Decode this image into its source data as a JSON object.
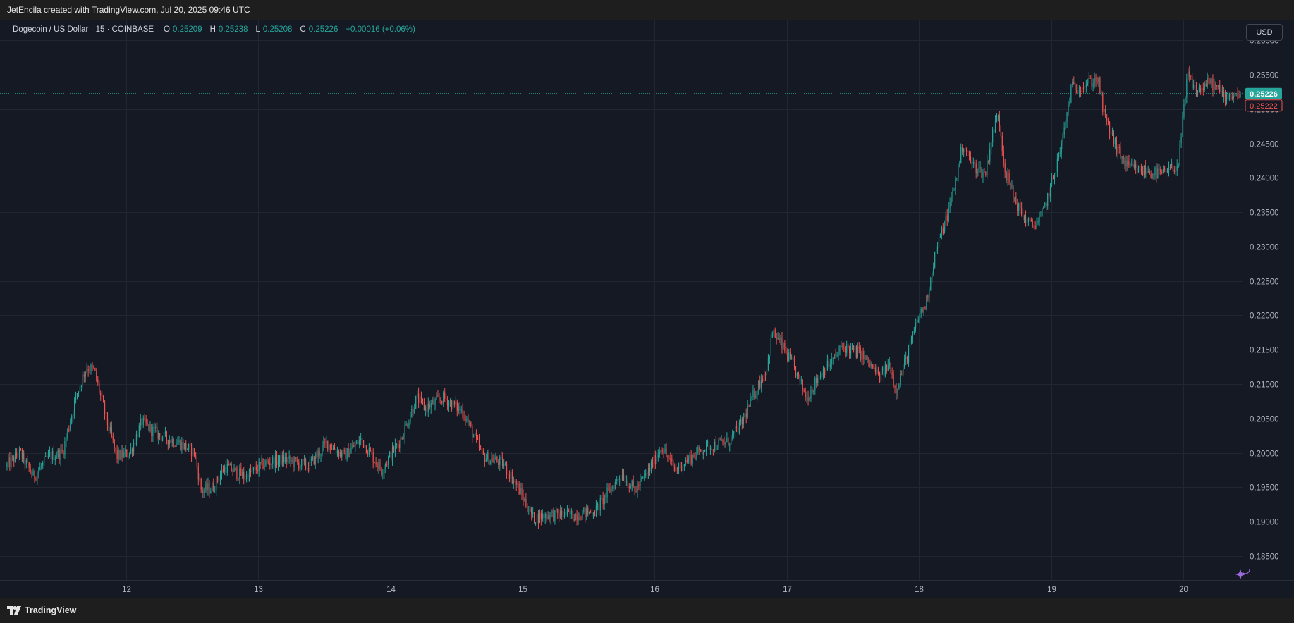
{
  "header": {
    "credit": "JetEncila created with TradingView.com, Jul 20, 2025 09:46 UTC"
  },
  "legend": {
    "symbol": "Dogecoin / US Dollar · 15 · COINBASE",
    "o_label": "O",
    "o_value": "0.25209",
    "h_label": "H",
    "h_value": "0.25238",
    "l_label": "L",
    "l_value": "0.25208",
    "c_label": "C",
    "c_value": "0.25226",
    "change": "+0.00016 (+0.06%)"
  },
  "currency_button": "USD",
  "footer": {
    "brand": "TradingView"
  },
  "colors": {
    "up": "#26a69a",
    "down": "#ef5350",
    "background": "#151924",
    "grid": "#222631",
    "axis_text": "#b2b5be"
  },
  "chart_data": {
    "type": "candlestick",
    "title": "Dogecoin / US Dollar · 15 · COINBASE",
    "x_ticks": [
      "12",
      "13",
      "14",
      "15",
      "16",
      "17",
      "18",
      "19",
      "20"
    ],
    "y_ticks": [
      "0.26000",
      "0.25500",
      "0.25000",
      "0.24500",
      "0.24000",
      "0.23500",
      "0.23000",
      "0.22500",
      "0.22000",
      "0.21500",
      "0.21000",
      "0.20500",
      "0.20000",
      "0.19500",
      "0.19000",
      "0.18500"
    ],
    "ylim": [
      0.1815,
      0.263
    ],
    "x_range_days": [
      11.09,
      20.43
    ],
    "last_price": "0.25226",
    "bid_price": "0.25222",
    "price_path": [
      [
        11.09,
        0.198
      ],
      [
        11.2,
        0.2
      ],
      [
        11.3,
        0.1965
      ],
      [
        11.42,
        0.1995
      ],
      [
        11.52,
        0.2
      ],
      [
        11.62,
        0.208
      ],
      [
        11.7,
        0.2125
      ],
      [
        11.76,
        0.212
      ],
      [
        11.85,
        0.205
      ],
      [
        11.93,
        0.1995
      ],
      [
        12.03,
        0.2
      ],
      [
        12.12,
        0.2045
      ],
      [
        12.25,
        0.2025
      ],
      [
        12.4,
        0.2015
      ],
      [
        12.52,
        0.2
      ],
      [
        12.57,
        0.1945
      ],
      [
        12.66,
        0.195
      ],
      [
        12.75,
        0.198
      ],
      [
        12.9,
        0.1965
      ],
      [
        13.05,
        0.1985
      ],
      [
        13.2,
        0.199
      ],
      [
        13.38,
        0.198
      ],
      [
        13.52,
        0.2015
      ],
      [
        13.65,
        0.1995
      ],
      [
        13.78,
        0.202
      ],
      [
        13.93,
        0.1975
      ],
      [
        14.08,
        0.202
      ],
      [
        14.2,
        0.208
      ],
      [
        14.26,
        0.2065
      ],
      [
        14.4,
        0.208
      ],
      [
        14.55,
        0.206
      ],
      [
        14.7,
        0.1995
      ],
      [
        14.85,
        0.1985
      ],
      [
        14.95,
        0.1955
      ],
      [
        15.08,
        0.1905
      ],
      [
        15.2,
        0.191
      ],
      [
        15.4,
        0.191
      ],
      [
        15.55,
        0.1915
      ],
      [
        15.62,
        0.1935
      ],
      [
        15.75,
        0.197
      ],
      [
        15.85,
        0.1945
      ],
      [
        15.96,
        0.1975
      ],
      [
        16.05,
        0.201
      ],
      [
        16.15,
        0.1975
      ],
      [
        16.25,
        0.199
      ],
      [
        16.4,
        0.201
      ],
      [
        16.55,
        0.2015
      ],
      [
        16.65,
        0.204
      ],
      [
        16.75,
        0.2085
      ],
      [
        16.85,
        0.2125
      ],
      [
        16.89,
        0.2175
      ],
      [
        16.95,
        0.216
      ],
      [
        17.05,
        0.2125
      ],
      [
        17.15,
        0.208
      ],
      [
        17.25,
        0.2115
      ],
      [
        17.35,
        0.2135
      ],
      [
        17.42,
        0.2155
      ],
      [
        17.55,
        0.2145
      ],
      [
        17.62,
        0.213
      ],
      [
        17.7,
        0.211
      ],
      [
        17.78,
        0.213
      ],
      [
        17.82,
        0.209
      ],
      [
        17.9,
        0.2135
      ],
      [
        18.0,
        0.22
      ],
      [
        18.05,
        0.2215
      ],
      [
        18.12,
        0.229
      ],
      [
        18.22,
        0.235
      ],
      [
        18.28,
        0.24
      ],
      [
        18.33,
        0.245
      ],
      [
        18.4,
        0.242
      ],
      [
        18.5,
        0.2405
      ],
      [
        18.55,
        0.246
      ],
      [
        18.6,
        0.2495
      ],
      [
        18.65,
        0.241
      ],
      [
        18.72,
        0.237
      ],
      [
        18.78,
        0.2345
      ],
      [
        18.85,
        0.233
      ],
      [
        18.92,
        0.234
      ],
      [
        19.0,
        0.239
      ],
      [
        19.08,
        0.245
      ],
      [
        19.15,
        0.253
      ],
      [
        19.25,
        0.2535
      ],
      [
        19.35,
        0.2545
      ],
      [
        19.4,
        0.249
      ],
      [
        19.5,
        0.244
      ],
      [
        19.58,
        0.2415
      ],
      [
        19.7,
        0.241
      ],
      [
        19.85,
        0.2405
      ],
      [
        19.96,
        0.242
      ],
      [
        20.03,
        0.255
      ],
      [
        20.1,
        0.2525
      ],
      [
        20.2,
        0.254
      ],
      [
        20.3,
        0.252
      ],
      [
        20.43,
        0.25226
      ]
    ]
  }
}
